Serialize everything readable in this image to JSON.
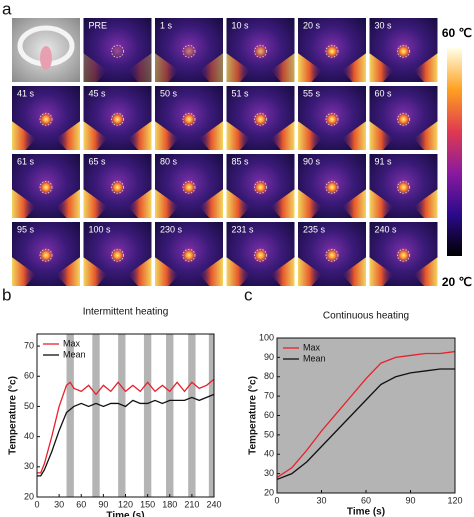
{
  "panel_labels": [
    "a",
    "b",
    "c"
  ],
  "thermal_images": {
    "labels": [
      "PRE",
      "1 s",
      "10 s",
      "20 s",
      "30 s",
      "41 s",
      "45 s",
      "50 s",
      "51 s",
      "55 s",
      "60 s",
      "61 s",
      "65 s",
      "80 s",
      "85 s",
      "90 s",
      "91 s",
      "95 s",
      "100 s",
      "230 s",
      "231 s",
      "235 s",
      "240 s"
    ],
    "colorbar_max": "60 ℃",
    "colorbar_min": "20 ℃"
  },
  "chart_data": [
    {
      "type": "line",
      "title": "Intermittent heating",
      "x_label": "Time (s)",
      "y_label": "Temperature (°c)",
      "xlim": [
        0,
        240
      ],
      "xticks": [
        0,
        30,
        60,
        90,
        120,
        150,
        180,
        210,
        240
      ],
      "ylim": [
        20,
        74
      ],
      "yticks": [
        20,
        30,
        40,
        50,
        60,
        70
      ],
      "legend": "upper-left",
      "shaded_color": "#b4b4b4",
      "shaded": [
        [
          40,
          50
        ],
        [
          75,
          85
        ],
        [
          110,
          120
        ],
        [
          145,
          155
        ],
        [
          175,
          185
        ],
        [
          205,
          215
        ],
        [
          233,
          240
        ]
      ],
      "x": [
        0,
        5,
        10,
        20,
        30,
        40,
        45,
        50,
        60,
        70,
        80,
        90,
        100,
        110,
        120,
        130,
        140,
        150,
        160,
        170,
        180,
        190,
        200,
        210,
        220,
        230,
        240
      ],
      "series": [
        {
          "name": "Max",
          "color": "#e8202a",
          "values": [
            28,
            28,
            31,
            40,
            50,
            57,
            58,
            56,
            55,
            57,
            54,
            57,
            55,
            58,
            55,
            57,
            55,
            58,
            55,
            57,
            55,
            58,
            55,
            58,
            56,
            57,
            59
          ]
        },
        {
          "name": "Mean",
          "color": "#111111",
          "values": [
            27,
            27,
            29,
            35,
            42,
            48,
            49,
            50,
            51,
            50,
            51,
            50,
            51,
            51,
            50,
            52,
            51,
            51,
            52,
            51,
            52,
            52,
            52,
            53,
            52,
            53,
            54
          ]
        }
      ]
    },
    {
      "type": "line",
      "title": "Continuous heating",
      "x_label": "Time (s)",
      "y_label": "Temperature (°c)",
      "xlim": [
        0,
        120
      ],
      "xticks": [
        0,
        30,
        60,
        90,
        120
      ],
      "ylim": [
        20,
        100
      ],
      "yticks": [
        20,
        30,
        40,
        50,
        60,
        70,
        80,
        90,
        100
      ],
      "legend": "upper-left",
      "background": "#b4b4b4",
      "x": [
        0,
        10,
        20,
        30,
        40,
        50,
        60,
        70,
        80,
        90,
        100,
        110,
        120
      ],
      "series": [
        {
          "name": "Max",
          "color": "#e8202a",
          "values": [
            28,
            33,
            42,
            52,
            61,
            70,
            79,
            87,
            90,
            91,
            92,
            92,
            93
          ]
        },
        {
          "name": "Mean",
          "color": "#111111",
          "values": [
            27,
            30,
            36,
            44,
            52,
            60,
            68,
            76,
            80,
            82,
            83,
            84,
            84
          ]
        }
      ]
    }
  ]
}
